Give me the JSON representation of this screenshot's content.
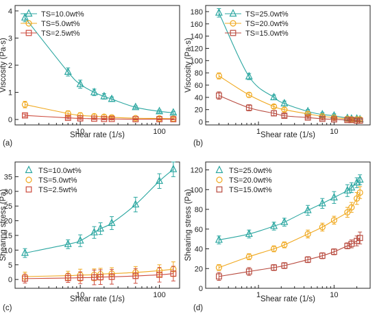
{
  "colors": {
    "ts10": "#2aa6a0",
    "ts5": "#f0a81e",
    "ts25": "#cc4a3c",
    "ts25b": "#2aa6a0",
    "ts20": "#f0a81e",
    "ts15": "#b84a3e"
  },
  "chart_data": [
    {
      "type": "scatter",
      "panel": "(a)",
      "xlabel": "Shear rate (1/s)",
      "ylabel": "Viscosity (Pa·s)",
      "xscale": "log",
      "xlim": [
        1.5,
        180
      ],
      "ylim": [
        -0.2,
        4.2
      ],
      "xticks": [
        10,
        100
      ],
      "xtick_labels": [
        "10",
        "100"
      ],
      "yticks": [
        0,
        1,
        2,
        3,
        4
      ],
      "ytick_labels": [
        "0",
        "1",
        "2",
        "3",
        "4"
      ],
      "legend_position": "top-left",
      "fit": "smooth",
      "series": [
        {
          "name": "TS=10.0wt%",
          "marker": "triangle",
          "color": "#2aa6a0",
          "points": [
            [
              2,
              3.75
            ],
            [
              7,
              1.75
            ],
            [
              10,
              1.3
            ],
            [
              15,
              1.0
            ],
            [
              20,
              0.85
            ],
            [
              25,
              0.75
            ],
            [
              50,
              0.45
            ],
            [
              100,
              0.3
            ],
            [
              150,
              0.25
            ]
          ],
          "err": [
            0.15,
            0.15,
            0.15,
            0.12,
            0.1,
            0.08,
            0.05,
            0.05,
            0.05
          ]
        },
        {
          "name": "TS=5.0wt%",
          "marker": "circle",
          "color": "#f0a81e",
          "points": [
            [
              2,
              0.55
            ],
            [
              7,
              0.22
            ],
            [
              10,
              0.15
            ],
            [
              15,
              0.12
            ],
            [
              20,
              0.1
            ],
            [
              25,
              0.08
            ],
            [
              50,
              0.05
            ],
            [
              100,
              0.04
            ],
            [
              150,
              0.03
            ]
          ],
          "err": [
            0.12,
            0.1,
            0.1,
            0.08,
            0.08,
            0.06,
            0.05,
            0.05,
            0.04
          ]
        },
        {
          "name": "TS=2.5wt%",
          "marker": "square",
          "color": "#cc4a3c",
          "points": [
            [
              2,
              0.15
            ],
            [
              7,
              0.06
            ],
            [
              10,
              0.04
            ],
            [
              15,
              0.03
            ],
            [
              20,
              0.02
            ],
            [
              25,
              0.02
            ],
            [
              50,
              0.01
            ],
            [
              100,
              0.01
            ],
            [
              150,
              0.01
            ]
          ],
          "err": [
            0.05,
            0.04,
            0.04,
            0.03,
            0.03,
            0.03,
            0.02,
            0.02,
            0.02
          ]
        }
      ]
    },
    {
      "type": "scatter",
      "panel": "(b)",
      "xlabel": "Shear rate (1/s)",
      "ylabel": "Viscosity (Pa·s)",
      "xscale": "log",
      "xlim": [
        0.2,
        30
      ],
      "ylim": [
        -5,
        190
      ],
      "xticks": [
        1,
        10
      ],
      "xtick_labels": [
        "1",
        "10"
      ],
      "yticks": [
        0,
        20,
        40,
        60,
        80,
        100,
        120,
        140,
        160,
        180
      ],
      "ytick_labels": [
        "0",
        "20",
        "40",
        "60",
        "80",
        "100",
        "120",
        "140",
        "160",
        "180"
      ],
      "legend_position": "top-right",
      "fit": "smooth",
      "series": [
        {
          "name": "TS=25.0wt%",
          "marker": "triangle",
          "color": "#2aa6a0",
          "points": [
            [
              0.3,
              178
            ],
            [
              0.75,
              74
            ],
            [
              1.6,
              40
            ],
            [
              2.2,
              30
            ],
            [
              4.5,
              17
            ],
            [
              7,
              12
            ],
            [
              10,
              10
            ],
            [
              15,
              6
            ],
            [
              17,
              5
            ],
            [
              20,
              5
            ],
            [
              22,
              4
            ]
          ],
          "err": [
            7,
            5,
            4,
            4,
            3,
            3,
            3,
            3,
            3,
            3,
            3
          ]
        },
        {
          "name": "TS=20.0wt%",
          "marker": "circle",
          "color": "#f0a81e",
          "points": [
            [
              0.3,
              75
            ],
            [
              0.75,
              44
            ],
            [
              1.6,
              25
            ],
            [
              2.2,
              20
            ],
            [
              4.5,
              13
            ],
            [
              7,
              9
            ],
            [
              10,
              7
            ],
            [
              15,
              5
            ],
            [
              17,
              4
            ],
            [
              20,
              4
            ],
            [
              22,
              4
            ]
          ],
          "err": [
            5,
            4,
            3,
            3,
            3,
            2,
            2,
            2,
            2,
            2,
            2
          ]
        },
        {
          "name": "TS=15.0wt%",
          "marker": "square",
          "color": "#b84a3e",
          "points": [
            [
              0.3,
              43
            ],
            [
              0.75,
              23
            ],
            [
              1.6,
              14
            ],
            [
              2.2,
              10
            ],
            [
              4.5,
              7
            ],
            [
              7,
              5
            ],
            [
              10,
              4
            ],
            [
              15,
              3
            ],
            [
              17,
              3
            ],
            [
              20,
              2
            ],
            [
              22,
              2
            ]
          ],
          "err": [
            6,
            5,
            4,
            3,
            2,
            2,
            2,
            2,
            2,
            2,
            2
          ]
        }
      ]
    },
    {
      "type": "scatter",
      "panel": "(c)",
      "xlabel": "Shear rate (1/s)",
      "ylabel": "Shearing stress (Pa)",
      "xscale": "log",
      "xlim": [
        1.5,
        180
      ],
      "ylim": [
        -3,
        40
      ],
      "xticks": [
        10,
        100
      ],
      "xtick_labels": [
        "10",
        "100"
      ],
      "yticks": [
        0,
        5,
        10,
        15,
        20,
        25,
        30,
        35
      ],
      "ytick_labels": [
        "0",
        "5",
        "10",
        "15",
        "20",
        "25",
        "30",
        "35"
      ],
      "legend_position": "top-left",
      "fit": "smooth",
      "series": [
        {
          "name": "TS=10.0wt%",
          "marker": "triangle",
          "color": "#2aa6a0",
          "points": [
            [
              2,
              9
            ],
            [
              7,
              12
            ],
            [
              10,
              13.2
            ],
            [
              15,
              16
            ],
            [
              18,
              17.3
            ],
            [
              25,
              19.2
            ],
            [
              50,
              25.5
            ],
            [
              100,
              33.5
            ],
            [
              150,
              37.5
            ]
          ],
          "err": [
            1.5,
            1.5,
            2,
            2,
            2,
            2.2,
            2.5,
            2.5,
            2.5
          ]
        },
        {
          "name": "TS=5.0wt%",
          "marker": "circle",
          "color": "#f0a81e",
          "points": [
            [
              2,
              1.0
            ],
            [
              7,
              1.3
            ],
            [
              10,
              1.5
            ],
            [
              15,
              1.6
            ],
            [
              18,
              1.8
            ],
            [
              25,
              2.0
            ],
            [
              50,
              2.4
            ],
            [
              100,
              3.0
            ],
            [
              150,
              3.5
            ]
          ],
          "err": [
            1.5,
            1.5,
            2,
            2,
            2,
            2,
            2,
            2,
            2.5
          ]
        },
        {
          "name": "TS=2.5wt%",
          "marker": "square",
          "color": "#cc4a3c",
          "points": [
            [
              2,
              0.3
            ],
            [
              7,
              0.5
            ],
            [
              10,
              0.6
            ],
            [
              15,
              0.7
            ],
            [
              18,
              0.8
            ],
            [
              25,
              0.9
            ],
            [
              50,
              1.2
            ],
            [
              100,
              1.6
            ],
            [
              150,
              2.0
            ]
          ],
          "err": [
            1.5,
            1.5,
            2,
            2.5,
            2.5,
            2.5,
            2.5,
            2.5,
            2.5
          ]
        }
      ]
    },
    {
      "type": "scatter",
      "panel": "(d)",
      "xlabel": "Shear rate (1/s)",
      "ylabel": "Shearing stress (Pa)",
      "xscale": "log",
      "xlim": [
        0.2,
        30
      ],
      "ylim": [
        0,
        128
      ],
      "xticks": [
        1,
        10
      ],
      "xtick_labels": [
        "1",
        "10"
      ],
      "yticks": [
        0,
        20,
        40,
        60,
        80,
        100,
        120
      ],
      "ytick_labels": [
        "0",
        "20",
        "40",
        "60",
        "80",
        "100",
        "120"
      ],
      "legend_position": "top-left",
      "fit": "smooth",
      "series": [
        {
          "name": "TS=25.0wt%",
          "marker": "triangle",
          "color": "#2aa6a0",
          "points": [
            [
              0.3,
              49
            ],
            [
              0.75,
              55
            ],
            [
              1.6,
              63
            ],
            [
              2.2,
              67
            ],
            [
              4.5,
              79
            ],
            [
              7,
              86
            ],
            [
              10,
              92
            ],
            [
              15,
              99
            ],
            [
              17,
              102
            ],
            [
              20,
              107
            ],
            [
              22,
              110
            ]
          ],
          "err": [
            4,
            4,
            4,
            4,
            5,
            5,
            6,
            6,
            5,
            5,
            5
          ]
        },
        {
          "name": "TS=20.0wt%",
          "marker": "circle",
          "color": "#f0a81e",
          "points": [
            [
              0.3,
              21
            ],
            [
              0.75,
              32
            ],
            [
              1.6,
              40
            ],
            [
              2.2,
              44
            ],
            [
              4.5,
              55
            ],
            [
              7,
              62
            ],
            [
              10,
              69
            ],
            [
              15,
              77
            ],
            [
              17,
              82
            ],
            [
              20,
              91
            ],
            [
              22,
              97
            ]
          ],
          "err": [
            3,
            3,
            3,
            3,
            4,
            4,
            4,
            5,
            5,
            6,
            6
          ]
        },
        {
          "name": "TS=15.0wt%",
          "marker": "square",
          "color": "#b84a3e",
          "points": [
            [
              0.3,
              12
            ],
            [
              0.75,
              17
            ],
            [
              1.6,
              21
            ],
            [
              2.2,
              23
            ],
            [
              4.5,
              29
            ],
            [
              7,
              33
            ],
            [
              10,
              37
            ],
            [
              15,
              43
            ],
            [
              17,
              45
            ],
            [
              20,
              48
            ],
            [
              22,
              51
            ]
          ],
          "err": [
            4,
            4,
            3,
            3,
            3,
            3,
            3,
            3,
            4,
            5,
            6
          ]
        }
      ]
    }
  ]
}
